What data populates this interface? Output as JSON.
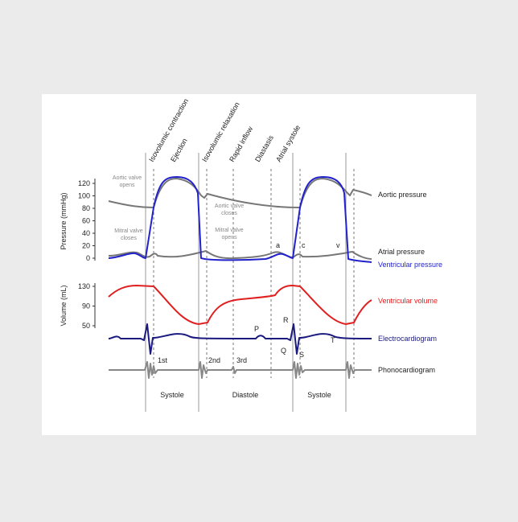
{
  "phases": [
    "Isovolumic contraction",
    "Ejection",
    "Isovolumic relaxation",
    "Rapid inflow",
    "Diastasis",
    "Atrial systole"
  ],
  "pressure_axis": {
    "label": "Pressure (mmHg)",
    "ticks": [
      0,
      20,
      40,
      60,
      80,
      100,
      120
    ]
  },
  "volume_axis": {
    "label": "Volume (mL)",
    "ticks": [
      50,
      90,
      130
    ]
  },
  "valve_notes": {
    "aortic_opens": [
      "Aortic valve",
      "opens"
    ],
    "aortic_closes": [
      "Aortic valve",
      "closes"
    ],
    "mitral_closes": [
      "Mitral valve",
      "closes"
    ],
    "mitral_opens": [
      "Mitral valve",
      "opens"
    ]
  },
  "atrial_waves": [
    "a",
    "c",
    "v"
  ],
  "ecg_waves": [
    "P",
    "R",
    "Q",
    "S",
    "T"
  ],
  "heart_sounds": [
    "1st",
    "2nd",
    "3rd"
  ],
  "traces": [
    "Aortic pressure",
    "Atrial pressure",
    "Ventricular pressure",
    "Ventricular volume",
    "Electrocardiogram",
    "Phonocardiogram"
  ],
  "periods": [
    "Systole",
    "Diastole",
    "Systole"
  ]
}
